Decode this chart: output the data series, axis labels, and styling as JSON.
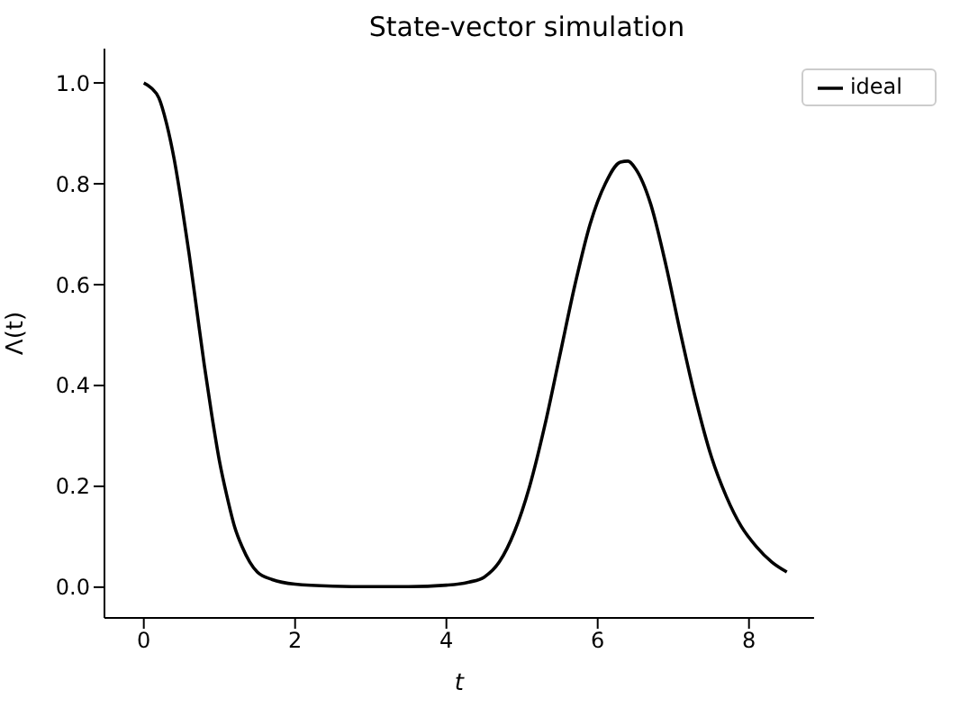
{
  "chart_data": {
    "type": "line",
    "title": "State-vector simulation",
    "xlabel": "t",
    "ylabel": "Λ(t)",
    "x": [
      0,
      0.1,
      0.2,
      0.3,
      0.4,
      0.5,
      0.6,
      0.7,
      0.8,
      0.9,
      1.0,
      1.1,
      1.2,
      1.3,
      1.4,
      1.5,
      1.7,
      2.0,
      2.5,
      3.0,
      3.5,
      4.0,
      4.3,
      4.5,
      4.7,
      4.9,
      5.1,
      5.3,
      5.5,
      5.7,
      5.9,
      6.1,
      6.3,
      6.4,
      6.5,
      6.7,
      6.9,
      7.1,
      7.3,
      7.5,
      7.7,
      7.9,
      8.1,
      8.3,
      8.5
    ],
    "series": [
      {
        "name": "ideal",
        "color": "#000000",
        "values": [
          1.0,
          0.99,
          0.97,
          0.92,
          0.85,
          0.76,
          0.66,
          0.55,
          0.44,
          0.34,
          0.25,
          0.18,
          0.12,
          0.08,
          0.05,
          0.03,
          0.015,
          0.006,
          0.002,
          0.001,
          0.001,
          0.004,
          0.01,
          0.02,
          0.05,
          0.11,
          0.2,
          0.32,
          0.46,
          0.6,
          0.72,
          0.8,
          0.843,
          0.845,
          0.83,
          0.76,
          0.64,
          0.5,
          0.37,
          0.26,
          0.18,
          0.12,
          0.08,
          0.05,
          0.03
        ]
      }
    ],
    "xlim": [
      -0.52,
      8.86
    ],
    "ylim": [
      -0.061,
      1.068
    ],
    "xticks": [
      0,
      2,
      4,
      6,
      8
    ],
    "yticks": [
      {
        "value": 0,
        "label": "0.0"
      },
      {
        "value": 0.2,
        "label": "0.2"
      },
      {
        "value": 0.4,
        "label": "0.4"
      },
      {
        "value": 0.6,
        "label": "0.6"
      },
      {
        "value": 0.8,
        "label": "0.8"
      },
      {
        "value": 1.0,
        "label": "1.0"
      }
    ],
    "legend": "top right",
    "grid": false,
    "marker": "none",
    "line_style": "solid"
  }
}
